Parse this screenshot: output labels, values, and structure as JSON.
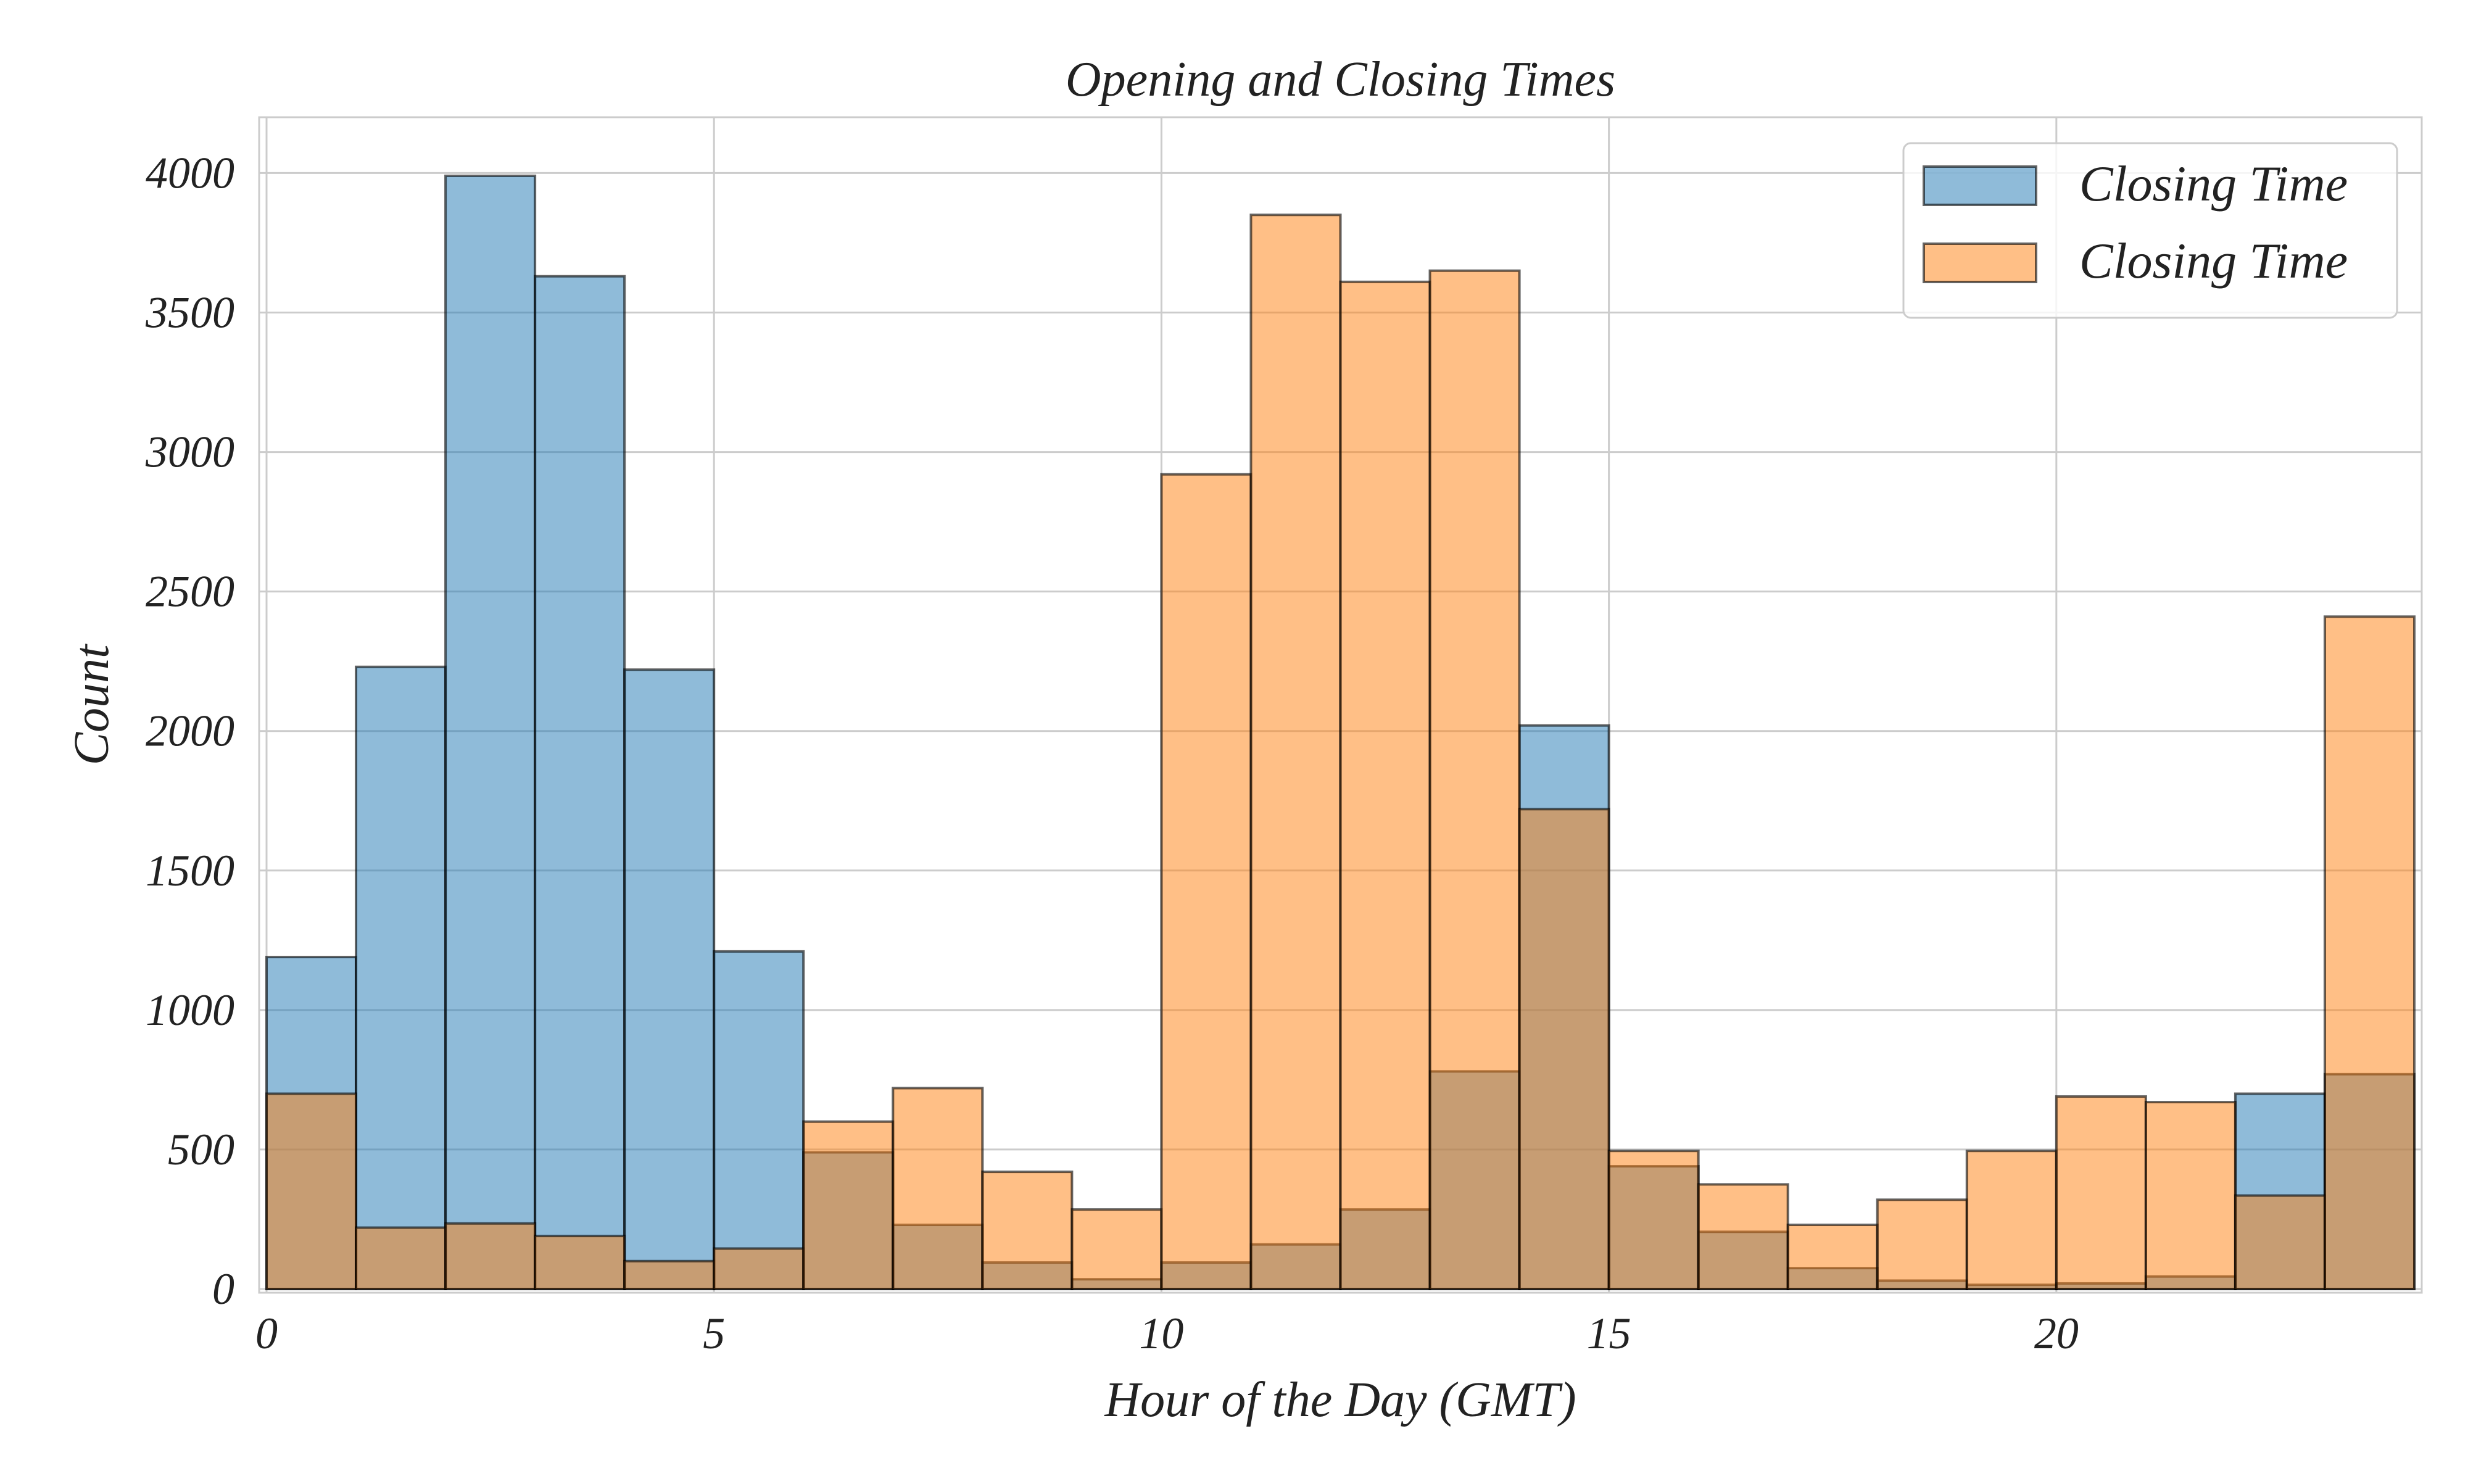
{
  "chart_data": {
    "type": "bar",
    "title": "Opening and Closing Times",
    "xlabel": "Hour of the Day (GMT)",
    "ylabel": "Count",
    "xlim": [
      0,
      24
    ],
    "ylim": [
      0,
      4200
    ],
    "xticks": [
      0,
      5,
      10,
      15,
      20
    ],
    "yticks": [
      0,
      500,
      1000,
      1500,
      2000,
      2500,
      3000,
      3500,
      4000
    ],
    "bin_edges": [
      0,
      1,
      2,
      3,
      4,
      5,
      6,
      7,
      8,
      9,
      10,
      11,
      12,
      13,
      14,
      15,
      16,
      17,
      18,
      19,
      20,
      21,
      22,
      23,
      24
    ],
    "grid": true,
    "legend_position": "top-right",
    "series": [
      {
        "name": "Closing Time",
        "color": "#1f77b4",
        "values": [
          1190,
          2230,
          3990,
          3630,
          2220,
          1210,
          490,
          230,
          95,
          35,
          95,
          160,
          285,
          780,
          2020,
          440,
          205,
          75,
          30,
          15,
          20,
          45,
          700,
          770
        ]
      },
      {
        "name": "Closing Time",
        "color": "#ff7f0e",
        "values": [
          700,
          220,
          235,
          190,
          100,
          145,
          600,
          720,
          420,
          285,
          2920,
          3850,
          3610,
          3650,
          1720,
          495,
          375,
          230,
          320,
          495,
          690,
          670,
          335,
          2410
        ]
      }
    ]
  }
}
